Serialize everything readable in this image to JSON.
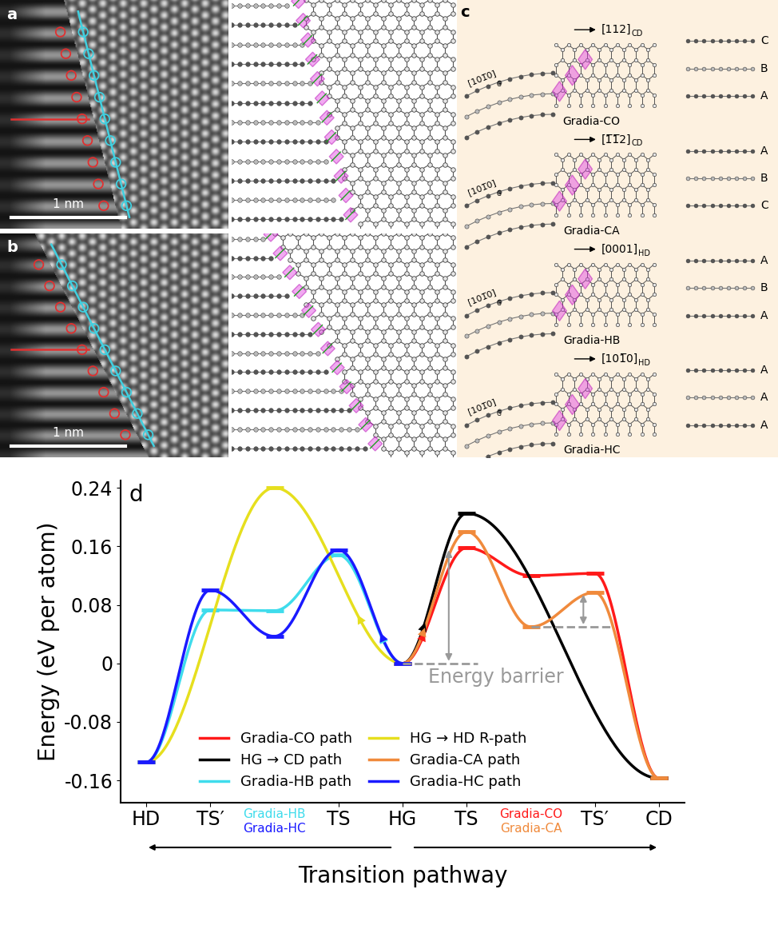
{
  "panels": {
    "a": {
      "label": "a",
      "scale_bar": "1 nm"
    },
    "b": {
      "label": "b",
      "scale_bar": "1 nm"
    },
    "c": {
      "label": "c",
      "models": [
        {
          "name": "Gradia-CO",
          "graphite_direction": {
            "text": "[101̅0]",
            "sub": "G"
          },
          "direction": {
            "text": "[112]",
            "sub": "CD"
          },
          "stacking": [
            "C",
            "B",
            "A"
          ]
        },
        {
          "name": "Gradia-CA",
          "graphite_direction": {
            "text": "[101̅0]",
            "sub": "G"
          },
          "direction": {
            "text": "[1̅1̅2]",
            "sub": "CD"
          },
          "stacking": [
            "A",
            "B",
            "C"
          ]
        },
        {
          "name": "Gradia-HB",
          "graphite_direction": {
            "text": "[101̅0]",
            "sub": "G"
          },
          "direction": {
            "text": "[0001]",
            "sub": "HD"
          },
          "stacking": [
            "A",
            "B",
            "A"
          ]
        },
        {
          "name": "Gradia-HC",
          "graphite_direction": {
            "text": "[101̅0]",
            "sub": "G"
          },
          "direction": {
            "text": "[101̅0]",
            "sub": "HD"
          },
          "stacking": [
            "A",
            "A",
            "A"
          ]
        }
      ]
    }
  },
  "chart_data": {
    "type": "line",
    "panel_label": "d",
    "y_label": "Energy (eV per atom)",
    "x_label": "Transition pathway",
    "categories": [
      "HD",
      "TS′",
      null,
      "TS",
      "HG",
      "TS",
      null,
      "TS′",
      "CD"
    ],
    "category_texts": [
      {
        "position": 2,
        "texts": [
          {
            "text": "Gradia-HB",
            "color": "#3fdcec"
          },
          {
            "text": "Gradia-HC",
            "color": "#1a1aff"
          }
        ]
      },
      {
        "position": 6,
        "texts": [
          {
            "text": "Gradia-CO",
            "color": "#ff1a1a"
          },
          {
            "text": "Gradia-CA",
            "color": "#f08a3c"
          }
        ]
      }
    ],
    "ylim": [
      -0.19,
      0.25
    ],
    "yticks": [
      -0.16,
      -0.08,
      0,
      0.08,
      0.16,
      0.24
    ],
    "legend": "lower center",
    "series": [
      {
        "name": "Gradia-CO path",
        "color": "#ff1a1a",
        "x": [
          4,
          5,
          6,
          7,
          8
        ],
        "values": [
          0,
          0.158,
          0.12,
          0.123,
          -0.157
        ]
      },
      {
        "name": "HG → CD path",
        "color": "#000000",
        "x": [
          4,
          5,
          8
        ],
        "values": [
          0,
          0.205,
          -0.157
        ]
      },
      {
        "name": "Gradia-HB path",
        "color": "#3fdcec",
        "x": [
          0,
          1,
          2,
          3,
          4
        ],
        "values": [
          -0.135,
          0.073,
          0.072,
          0.148,
          0
        ]
      },
      {
        "name": "HG → HD R-path",
        "color": "#e6df1e",
        "x": [
          0,
          2,
          4
        ],
        "values": [
          -0.135,
          0.24,
          0
        ]
      },
      {
        "name": "Gradia-CA path",
        "color": "#f08a3c",
        "x": [
          4,
          5,
          6,
          7,
          8
        ],
        "values": [
          0,
          0.18,
          0.05,
          0.097,
          -0.157
        ]
      },
      {
        "name": "Gradia-HC path",
        "color": "#1a1aff",
        "x": [
          0,
          1,
          2,
          3,
          4
        ],
        "values": [
          -0.135,
          0.1,
          0.037,
          0.155,
          0
        ]
      }
    ],
    "energy_barrier": {
      "text": "Energy barrier",
      "color": "#999999",
      "ranges": [
        [
          0,
          0.158
        ],
        [
          0.05,
          0.097
        ]
      ]
    }
  }
}
